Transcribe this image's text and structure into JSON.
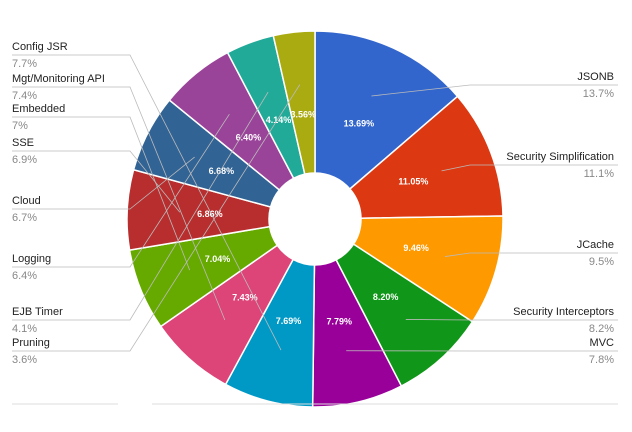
{
  "chart_data": {
    "type": "pie",
    "donut": true,
    "slices": [
      {
        "name": "JSONB",
        "value": 13.69,
        "pct_label": "13.69%",
        "legend_value": "13.7%",
        "color": "#3366cc"
      },
      {
        "name": "Security Simplification",
        "value": 11.05,
        "pct_label": "11.05%",
        "legend_value": "11.1%",
        "color": "#dc3912"
      },
      {
        "name": "JCache",
        "value": 9.46,
        "pct_label": "9.46%",
        "legend_value": "9.5%",
        "color": "#ff9900"
      },
      {
        "name": "Security Interceptors",
        "value": 8.2,
        "pct_label": "8.20%",
        "legend_value": "8.2%",
        "color": "#109618"
      },
      {
        "name": "MVC",
        "value": 7.79,
        "pct_label": "7.79%",
        "legend_value": "7.8%",
        "color": "#990099"
      },
      {
        "name": "Config JSR",
        "value": 7.69,
        "pct_label": "7.69%",
        "legend_value": "7.7%",
        "color": "#0099c6"
      },
      {
        "name": "Mgt/Monitoring API",
        "value": 7.43,
        "pct_label": "7.43%",
        "legend_value": "7.4%",
        "color": "#dd4477"
      },
      {
        "name": "Embedded",
        "value": 7.04,
        "pct_label": "7.04%",
        "legend_value": "7%",
        "color": "#66aa00"
      },
      {
        "name": "SSE",
        "value": 6.86,
        "pct_label": "6.86%",
        "legend_value": "6.9%",
        "color": "#b82e2e"
      },
      {
        "name": "Cloud",
        "value": 6.68,
        "pct_label": "6.68%",
        "legend_value": "6.7%",
        "color": "#316395"
      },
      {
        "name": "Logging",
        "value": 6.4,
        "pct_label": "6.40%",
        "legend_value": "6.4%",
        "color": "#994499"
      },
      {
        "name": "EJB Timer",
        "value": 4.14,
        "pct_label": "4.14%",
        "legend_value": "4.1%",
        "color": "#22aa99"
      },
      {
        "name": "Pruning",
        "value": 3.56,
        "pct_label": "3.56%",
        "legend_value": "3.6%",
        "color": "#aaaa11"
      }
    ],
    "legend_placement": "labeled, left and right sides"
  }
}
